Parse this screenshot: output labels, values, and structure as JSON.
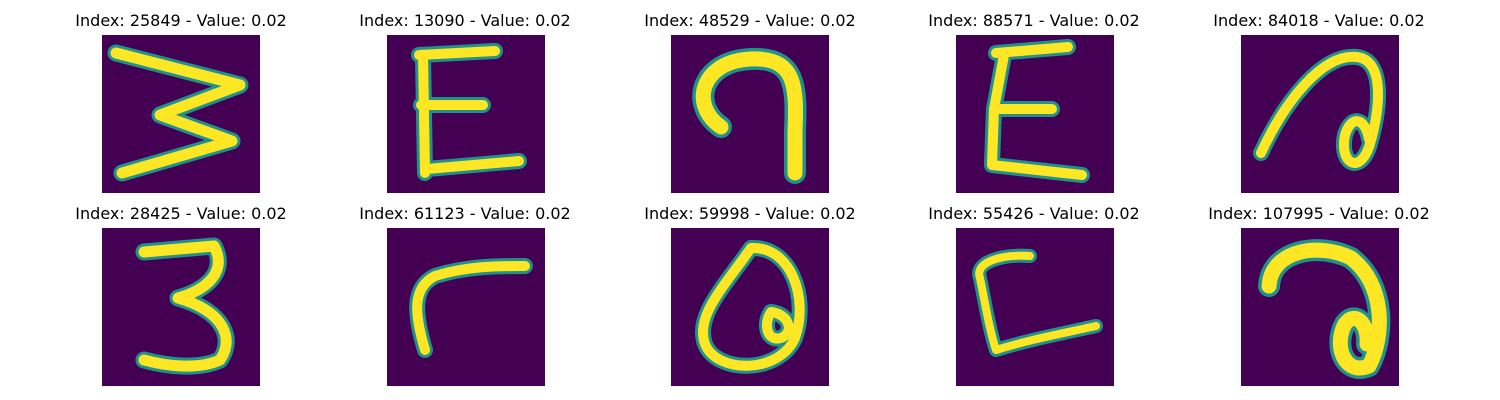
{
  "figure": {
    "background_color": "#ffffff",
    "colormap": "viridis",
    "image_background_color": "#440154",
    "stroke_color": "#fde725",
    "stroke_edge_color": "#21918c"
  },
  "panels": [
    {
      "title": "Index: 25849 - Value: 0.02",
      "glyph": "zigzag-w"
    },
    {
      "title": "Index: 13090 - Value: 0.02",
      "glyph": "epsilon"
    },
    {
      "title": "Index: 48529 - Value: 0.02",
      "glyph": "hook-curl"
    },
    {
      "title": "Index: 88571 - Value: 0.02",
      "glyph": "epsilon"
    },
    {
      "title": "Index: 84018 - Value: 0.02",
      "glyph": "loop-a"
    },
    {
      "title": "Index: 28425 - Value: 0.02",
      "glyph": "three"
    },
    {
      "title": "Index: 61123 - Value: 0.02",
      "glyph": "r-stroke"
    },
    {
      "title": "Index: 59998 - Value: 0.02",
      "glyph": "circle-q"
    },
    {
      "title": "Index: 55426 - Value: 0.02",
      "glyph": "l-shape"
    },
    {
      "title": "Index: 107995 - Value: 0.02",
      "glyph": "loop-a"
    }
  ]
}
